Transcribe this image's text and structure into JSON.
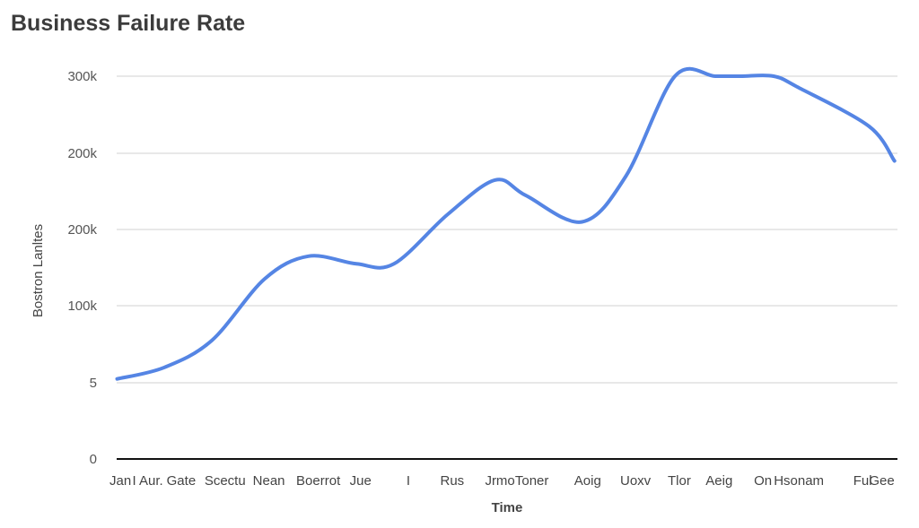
{
  "chart_data": {
    "type": "line",
    "title": "Business Failure Rate",
    "xlabel": "Time",
    "ylabel": "Bostron Lanltes",
    "y_ticks": [
      "0",
      "5",
      "100k",
      "200k",
      "200k",
      "300k"
    ],
    "x_tick_labels": [
      "Jan",
      "I Aur.",
      "Gate",
      "Scectu",
      "Nean",
      "Boerrot",
      "Jue",
      "I",
      "Rus",
      "Jrmo",
      "Toner",
      "Aoig",
      "Uoxv",
      "Tlor",
      "Aeig",
      "On",
      "Hsonam",
      "Ful",
      "Gee"
    ],
    "grid": true,
    "legend": "none",
    "series": [
      {
        "values": [
          [
            0.2,
            1.05
          ],
          [
            1.5,
            1.2
          ],
          [
            2.7,
            1.55
          ],
          [
            3.9,
            2.35
          ],
          [
            4.8,
            2.65
          ],
          [
            5.9,
            2.55
          ],
          [
            6.7,
            2.55
          ],
          [
            7.9,
            3.2
          ],
          [
            8.9,
            3.65
          ],
          [
            9.8,
            3.45
          ],
          [
            10.9,
            3.1
          ],
          [
            11.8,
            3.7
          ],
          [
            12.9,
            5.0
          ],
          [
            13.9,
            5.0
          ],
          [
            14.5,
            5.0
          ],
          [
            15.3,
            5.0
          ],
          [
            16.0,
            4.85
          ],
          [
            17.2,
            4.35
          ],
          [
            18.3,
            3.9
          ]
        ]
      }
    ],
    "color": "#5585e4"
  }
}
